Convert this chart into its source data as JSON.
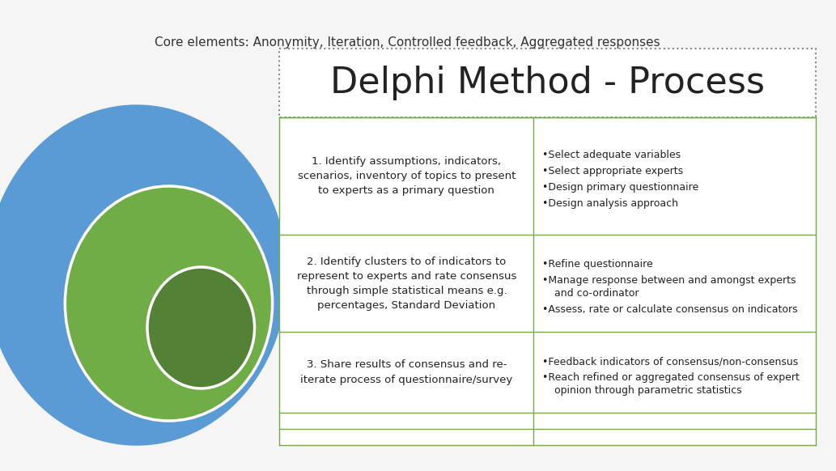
{
  "background_color": "#f5f5f5",
  "title": "Delphi Method - Process",
  "title_fontsize": 32,
  "subtitle": "Core elements: Anonymity, Iteration, Controlled feedback, Aggregated responses",
  "subtitle_fontsize": 11,
  "circle_colors": [
    "#5b9bd5",
    "#70ad47",
    "#538135"
  ],
  "circle_white_outline": "#ffffff",
  "table_border_color": "#70ad47",
  "title_box_border": "#a0a0a0",
  "steps": [
    {
      "number": "1.",
      "left_text": "1. Identify assumptions, indicators,\nscenarios, inventory of topics to present\nto experts as a primary question",
      "right_bullets": [
        "Select adequate variables",
        "Select appropriate experts",
        "Design primary questionnaire",
        "Design analysis approach"
      ]
    },
    {
      "number": "2.",
      "left_text": "2. Identify clusters to of indicators to\nrepresent to experts and rate consensus\nthrough simple statistical means e.g.\npercentages, Standard Deviation",
      "right_bullets": [
        "Refine questionnaire",
        "Manage response between and amongst experts\n  and co-ordinator",
        "Assess, rate or calculate consensus on indicators"
      ]
    },
    {
      "number": "3.",
      "left_text": "3. Share results of consensus and re-\niterate process of questionnaire/survey",
      "right_bullets": [
        "Feedback indicators of consensus/non-consensus",
        "Reach refined or aggregated consensus of expert\n  opinion through parametric statistics"
      ]
    }
  ]
}
